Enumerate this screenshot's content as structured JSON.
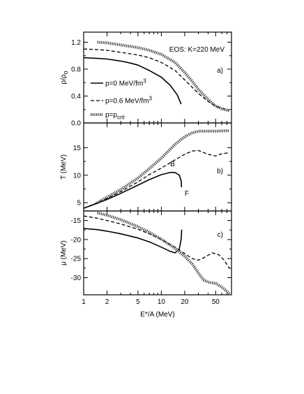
{
  "chart_data": {
    "type": "line",
    "x_scale": "log",
    "xlim": [
      1,
      80
    ],
    "xlabel": "E*/A (MeV)",
    "x_ticks": [
      1,
      2,
      5,
      10,
      20,
      50
    ],
    "x_tick_labels": [
      "1",
      "2",
      "5",
      "10",
      "20",
      "50"
    ],
    "legend": {
      "placement": "bottom-left of panel a",
      "entries": [
        {
          "key": "p0",
          "label": "p=0 MeV/fm",
          "sup": "3"
        },
        {
          "key": "p06",
          "label": "p=0.6 MeV/fm",
          "sup": "3"
        },
        {
          "key": "pcrit",
          "label": "p=p",
          "sub": "crit"
        }
      ]
    },
    "panels": [
      {
        "id": "a",
        "panel_label": "a)",
        "annotation": "EOS: K=220 MeV",
        "ylabel_main": "ρ/ρ",
        "ylabel_sub": "o",
        "ylim": [
          0.0,
          1.35
        ],
        "y_ticks": [
          0.0,
          0.4,
          0.8,
          1.2
        ],
        "y_tick_labels": [
          "0.0",
          "0.4",
          "0.8",
          "1.2"
        ],
        "series": [
          {
            "key": "p0",
            "points": [
              [
                1,
                0.97
              ],
              [
                1.5,
                0.96
              ],
              [
                2,
                0.95
              ],
              [
                3,
                0.92
              ],
              [
                4,
                0.89
              ],
              [
                5,
                0.86
              ],
              [
                7,
                0.78
              ],
              [
                10,
                0.68
              ],
              [
                13,
                0.56
              ],
              [
                16,
                0.42
              ],
              [
                18,
                0.28
              ]
            ]
          },
          {
            "key": "p06",
            "points": [
              [
                1,
                1.1
              ],
              [
                1.5,
                1.09
              ],
              [
                2,
                1.08
              ],
              [
                3,
                1.05
              ],
              [
                5,
                1.01
              ],
              [
                7,
                0.97
              ],
              [
                10,
                0.9
              ],
              [
                15,
                0.78
              ],
              [
                20,
                0.64
              ],
              [
                30,
                0.44
              ],
              [
                40,
                0.32
              ],
              [
                50,
                0.25
              ],
              [
                60,
                0.22
              ],
              [
                75,
                0.19
              ]
            ]
          },
          {
            "key": "pcrit",
            "points": [
              [
                1.5,
                1.2
              ],
              [
                2,
                1.19
              ],
              [
                3,
                1.16
              ],
              [
                5,
                1.12
              ],
              [
                7,
                1.08
              ],
              [
                10,
                1.02
              ],
              [
                15,
                0.9
              ],
              [
                20,
                0.75
              ],
              [
                25,
                0.62
              ],
              [
                30,
                0.5
              ],
              [
                40,
                0.35
              ],
              [
                50,
                0.25
              ],
              [
                60,
                0.21
              ],
              [
                75,
                0.18
              ]
            ]
          }
        ]
      },
      {
        "id": "b",
        "panel_label": "b)",
        "ylabel_main": "T (MeV)",
        "ylim": [
          3.5,
          19.5
        ],
        "y_ticks": [
          5,
          10,
          15
        ],
        "y_tick_labels": [
          "5",
          "10",
          "15"
        ],
        "point_labels": [
          {
            "text": "B",
            "x": 13,
            "y": 11.6
          },
          {
            "text": "F",
            "x": 20,
            "y": 6.3
          }
        ],
        "series": [
          {
            "key": "p0",
            "points": [
              [
                1,
                4.0
              ],
              [
                1.5,
                4.9
              ],
              [
                2,
                5.6
              ],
              [
                3,
                6.7
              ],
              [
                5,
                8.2
              ],
              [
                7,
                9.2
              ],
              [
                10,
                10.1
              ],
              [
                13,
                10.5
              ],
              [
                15,
                10.5
              ],
              [
                17,
                10.0
              ],
              [
                18,
                9.0
              ],
              [
                18.2,
                7.8
              ]
            ]
          },
          {
            "key": "p06",
            "points": [
              [
                1,
                4.0
              ],
              [
                1.5,
                5.0
              ],
              [
                2,
                5.8
              ],
              [
                3,
                7.0
              ],
              [
                5,
                8.8
              ],
              [
                7,
                10.1
              ],
              [
                10,
                11.3
              ],
              [
                15,
                12.8
              ],
              [
                20,
                13.8
              ],
              [
                25,
                14.4
              ],
              [
                30,
                14.5
              ],
              [
                40,
                13.8
              ],
              [
                50,
                13.5
              ],
              [
                60,
                13.9
              ],
              [
                75,
                14.1
              ]
            ]
          },
          {
            "key": "pcrit",
            "points": [
              [
                1.5,
                5.0
              ],
              [
                2,
                6.0
              ],
              [
                3,
                7.4
              ],
              [
                5,
                9.5
              ],
              [
                7,
                11.2
              ],
              [
                10,
                13.1
              ],
              [
                15,
                15.6
              ],
              [
                20,
                17.0
              ],
              [
                25,
                17.7
              ],
              [
                30,
                18.0
              ],
              [
                50,
                18.0
              ],
              [
                75,
                18.1
              ]
            ]
          }
        ]
      },
      {
        "id": "c",
        "panel_label": "c)",
        "ylabel_main": "μ (MeV)",
        "ylim": [
          -34.5,
          -12.5
        ],
        "y_ticks": [
          -15,
          -20,
          -25,
          -30
        ],
        "y_tick_labels": [
          "-15",
          "-20",
          "-25",
          "-30"
        ],
        "series": [
          {
            "key": "p0",
            "points": [
              [
                1,
                -17.1
              ],
              [
                1.5,
                -17.4
              ],
              [
                2,
                -17.8
              ],
              [
                3,
                -18.5
              ],
              [
                5,
                -19.6
              ],
              [
                7,
                -20.6
              ],
              [
                10,
                -22.0
              ],
              [
                13,
                -23.1
              ],
              [
                15,
                -23.5
              ],
              [
                17,
                -22.5
              ],
              [
                18,
                -20.0
              ],
              [
                18.3,
                -17.4
              ]
            ]
          },
          {
            "key": "p06",
            "points": [
              [
                1,
                -13.8
              ],
              [
                1.5,
                -14.4
              ],
              [
                2,
                -15.0
              ],
              [
                3,
                -15.9
              ],
              [
                5,
                -17.3
              ],
              [
                7,
                -18.5
              ],
              [
                10,
                -20.0
              ],
              [
                15,
                -22.0
              ],
              [
                20,
                -23.7
              ],
              [
                25,
                -25.0
              ],
              [
                30,
                -25.4
              ],
              [
                35,
                -24.8
              ],
              [
                45,
                -23.5
              ],
              [
                55,
                -24.0
              ],
              [
                65,
                -25.5
              ],
              [
                75,
                -27.6
              ]
            ]
          },
          {
            "key": "pcrit",
            "points": [
              [
                1.5,
                -13.0
              ],
              [
                2,
                -13.6
              ],
              [
                3,
                -14.8
              ],
              [
                5,
                -16.6
              ],
              [
                7,
                -18.1
              ],
              [
                10,
                -19.9
              ],
              [
                15,
                -22.3
              ],
              [
                20,
                -24.4
              ],
              [
                25,
                -26.4
              ],
              [
                30,
                -28.8
              ],
              [
                35,
                -30.6
              ],
              [
                40,
                -31.2
              ],
              [
                50,
                -31.5
              ],
              [
                60,
                -32.5
              ],
              [
                70,
                -33.6
              ],
              [
                75,
                -34.2
              ]
            ]
          }
        ]
      }
    ]
  }
}
